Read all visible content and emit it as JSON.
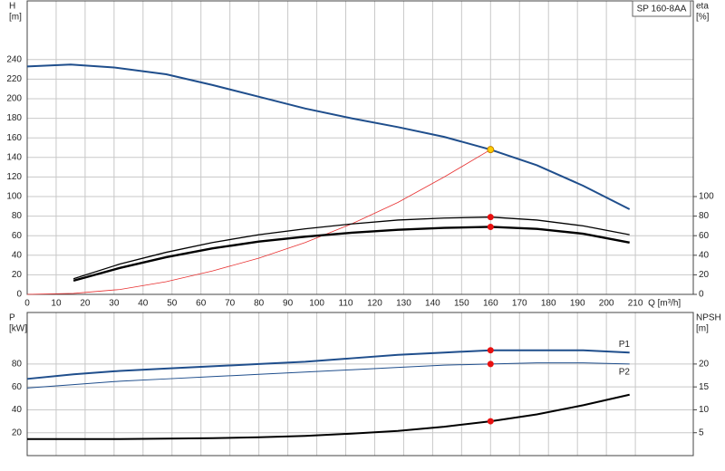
{
  "chart_data": [
    {
      "type": "line",
      "title": "SP 160-8AA",
      "ylabel": [
        "H",
        "[m]"
      ],
      "y2label": [
        "eta",
        "[%]"
      ],
      "xlabel": "Q [m³/h]",
      "xlim": [
        0,
        230
      ],
      "xticks": [
        0,
        10,
        20,
        30,
        40,
        50,
        60,
        70,
        80,
        90,
        100,
        110,
        120,
        130,
        140,
        150,
        160,
        170,
        180,
        190,
        200,
        210
      ],
      "ylim": [
        0,
        300
      ],
      "yticks": [
        0,
        20,
        40,
        60,
        80,
        100,
        120,
        140,
        160,
        180,
        200,
        220,
        240
      ],
      "y2lim": [
        0,
        300
      ],
      "y2ticks": [
        0,
        20,
        40,
        60,
        80,
        100
      ],
      "grid": true,
      "series": [
        {
          "color": "#1f4e8c",
          "width": 2,
          "x": [
            0,
            15,
            30,
            48,
            64,
            80,
            96,
            112,
            128,
            144,
            160,
            176,
            192,
            208
          ],
          "values": [
            233,
            235,
            232,
            225,
            214,
            202,
            190,
            180,
            171,
            161,
            148,
            132,
            111,
            87
          ]
        },
        {
          "color": "#e83030",
          "width": 0.8,
          "x": [
            0,
            16,
            32,
            48,
            64,
            80,
            96,
            112,
            128,
            144,
            160
          ],
          "values": [
            0,
            1,
            5,
            13,
            24,
            37,
            53,
            72,
            94,
            120,
            148
          ]
        },
        {
          "color": "#000000",
          "width": 1.3,
          "axis": "y2",
          "x": [
            16,
            32,
            48,
            64,
            80,
            96,
            112,
            128,
            144,
            160,
            176,
            192,
            208
          ],
          "values": [
            16,
            31,
            43,
            53,
            61,
            67,
            72,
            76,
            78,
            79,
            76,
            70,
            61
          ]
        },
        {
          "color": "#000000",
          "width": 2.4,
          "axis": "y2",
          "x": [
            16,
            32,
            48,
            64,
            80,
            96,
            112,
            128,
            144,
            160,
            176,
            192,
            208
          ],
          "values": [
            14,
            27,
            38,
            47,
            54,
            59,
            63,
            66,
            68,
            69,
            67,
            62,
            53
          ]
        },
        {
          "color": "#ffcc00",
          "marker": true,
          "x": [
            160
          ],
          "values": [
            148
          ]
        },
        {
          "color": "#e81010",
          "marker": true,
          "axis": "y2",
          "x": [
            160,
            160
          ],
          "values": [
            79,
            69
          ]
        }
      ]
    },
    {
      "type": "line",
      "ylabel": [
        "P",
        "[kW]"
      ],
      "y2label": [
        "NPSH",
        "[m]"
      ],
      "xlim": [
        0,
        230
      ],
      "ylim": [
        0,
        125
      ],
      "yticks": [
        20,
        40,
        60,
        80
      ],
      "y2lim": [
        0,
        31.25
      ],
      "y2ticks": [
        5,
        10,
        15,
        20
      ],
      "grid": true,
      "series": [
        {
          "name": "P1",
          "color": "#1f4e8c",
          "width": 2,
          "x": [
            0,
            16,
            32,
            48,
            64,
            80,
            96,
            112,
            128,
            144,
            160,
            176,
            192,
            208
          ],
          "values": [
            67,
            71,
            74,
            76,
            78,
            80,
            82,
            85,
            88,
            90,
            92,
            92,
            92,
            90
          ]
        },
        {
          "name": "P2",
          "color": "#1f4e8c",
          "width": 1,
          "x": [
            0,
            16,
            32,
            48,
            64,
            80,
            96,
            112,
            128,
            144,
            160,
            176,
            192,
            208
          ],
          "values": [
            59,
            62,
            65,
            67,
            69,
            71,
            73,
            75,
            77,
            79,
            80,
            81,
            81,
            80
          ]
        },
        {
          "color": "#000000",
          "width": 2,
          "axis": "y2",
          "x": [
            0,
            16,
            32,
            48,
            64,
            80,
            96,
            112,
            128,
            144,
            160,
            176,
            192,
            208
          ],
          "values": [
            3.6,
            3.6,
            3.6,
            3.7,
            3.8,
            4.0,
            4.3,
            4.8,
            5.4,
            6.3,
            7.5,
            9.0,
            11.0,
            13.3
          ]
        },
        {
          "color": "#e81010",
          "marker": true,
          "x": [
            160,
            160
          ],
          "values": [
            92,
            80
          ]
        },
        {
          "color": "#e81010",
          "marker": true,
          "axis": "y2",
          "x": [
            160
          ],
          "values": [
            7.5
          ]
        }
      ]
    }
  ]
}
